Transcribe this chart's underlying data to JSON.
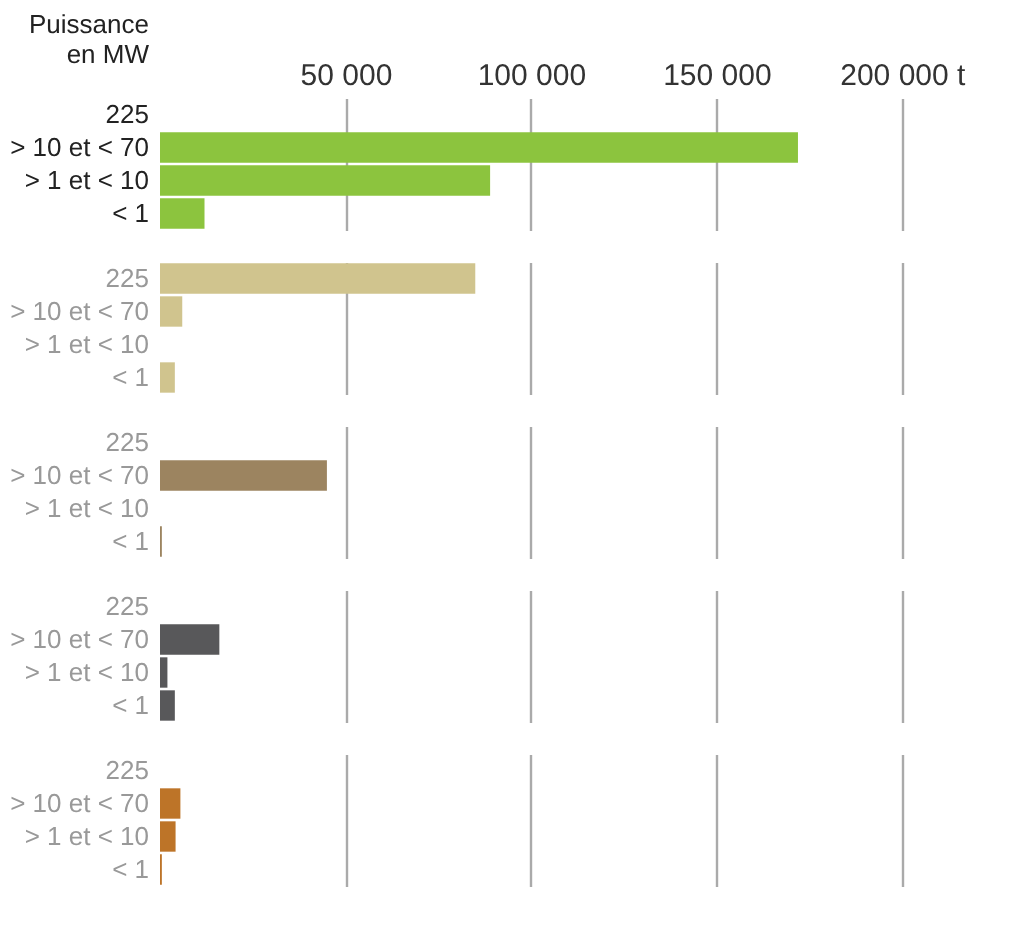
{
  "chart_data": [
    {
      "type": "bar",
      "orientation": "horizontal",
      "ylabel": "Puissance\nen MW",
      "categories": [
        "225",
        "> 10 et < 70",
        "> 1 et < 10",
        "< 1"
      ],
      "values": [
        0,
        172000,
        89000,
        12000
      ],
      "color": "#8cc43e",
      "xlim": [
        0,
        220000
      ],
      "xticks": [
        {
          "value": 50000,
          "label": "50 000"
        },
        {
          "value": 100000,
          "label": "100 000"
        },
        {
          "value": 150000,
          "label": "150 000"
        },
        {
          "value": 200000,
          "label": "200 000 t"
        }
      ],
      "grid": "x"
    },
    {
      "type": "bar",
      "orientation": "horizontal",
      "categories": [
        "225",
        "> 10 et < 70",
        "> 1 et < 10",
        "< 1"
      ],
      "values": [
        85000,
        6000,
        0,
        4000
      ],
      "color": "#d0c48e",
      "xlim": [
        0,
        220000
      ],
      "xticks": [
        {
          "value": 50000,
          "label": null
        },
        {
          "value": 100000,
          "label": null
        },
        {
          "value": 150000,
          "label": null
        },
        {
          "value": 200000,
          "label": null
        }
      ],
      "grid": "x",
      "tick_labels": "y"
    },
    {
      "type": "bar",
      "orientation": "horizontal",
      "categories": [
        "225",
        "> 10 et < 70",
        "> 1 et < 10",
        "< 1"
      ],
      "values": [
        0,
        45000,
        0,
        500
      ],
      "color": "#9c8460",
      "xlim": [
        0,
        220000
      ],
      "xticks": [
        {
          "value": 50000,
          "label": null
        },
        {
          "value": 100000,
          "label": null
        },
        {
          "value": 150000,
          "label": null
        },
        {
          "value": 200000,
          "label": null
        }
      ],
      "grid": "x",
      "tick_labels": "y"
    },
    {
      "type": "bar",
      "orientation": "horizontal",
      "categories": [
        "225",
        "> 10 et < 70",
        "> 1 et < 10",
        "< 1"
      ],
      "values": [
        0,
        16000,
        2000,
        4000
      ],
      "color": "#58585a",
      "xlim": [
        0,
        220000
      ],
      "xticks": [
        {
          "value": 50000,
          "label": null
        },
        {
          "value": 100000,
          "label": null
        },
        {
          "value": 150000,
          "label": null
        },
        {
          "value": 200000,
          "label": null
        }
      ],
      "grid": "x",
      "tick_labels": "y"
    },
    {
      "type": "bar",
      "orientation": "horizontal",
      "categories": [
        "225",
        "> 10 et < 70",
        "> 1 et < 10",
        "< 1"
      ],
      "values": [
        0,
        5500,
        4200,
        500
      ],
      "color": "#bd7428",
      "xlim": [
        0,
        220000
      ],
      "xticks": [
        {
          "value": 50000,
          "label": null
        },
        {
          "value": 100000,
          "label": null
        },
        {
          "value": 150000,
          "label": null
        },
        {
          "value": 200000,
          "label": null
        }
      ],
      "grid": "x",
      "tick_labels": "y"
    }
  ]
}
